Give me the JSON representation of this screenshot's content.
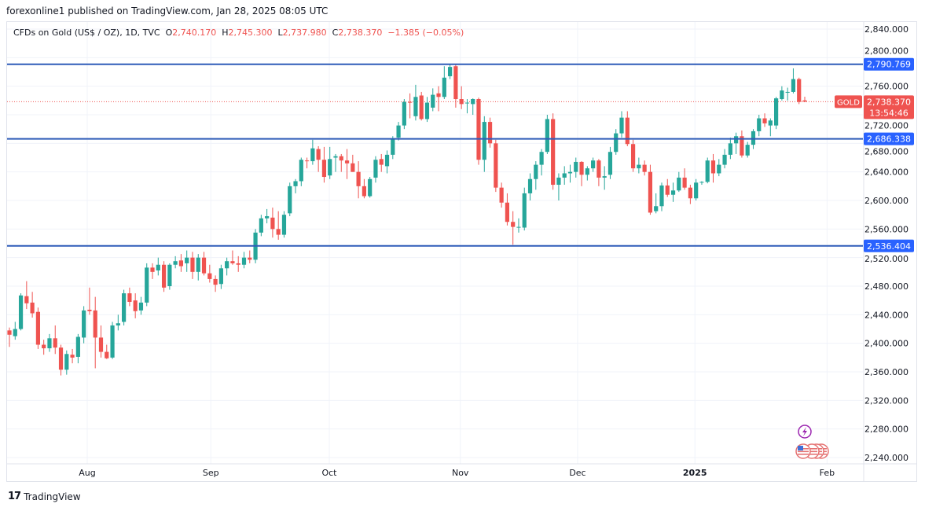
{
  "header": {
    "published": "forexonline1 published on TradingView.com, Jan 28, 2025 08:05 UTC"
  },
  "legend": {
    "symbol": "CFDs on Gold (US$ / OZ), 1D, TVC",
    "o_label": "O",
    "o": "2,740.170",
    "h_label": "H",
    "h": "2,745.300",
    "l_label": "L",
    "l": "2,737.980",
    "c_label": "C",
    "c": "2,738.370",
    "change": "−1.385 (−0.05%)"
  },
  "footer": {
    "brand": "TradingView"
  },
  "colors": {
    "up": "#26a69a",
    "down": "#ef5350",
    "level_line": "#2f5cb8",
    "level_label": "#2962ff",
    "grid": "#f0f3fa"
  },
  "chart_data": {
    "type": "candlestick",
    "title": "",
    "ylim": [
      2220,
      2860
    ],
    "y_ticks": [
      "2,840.000",
      "2,800.000",
      "2,760.000",
      "2,720.000",
      "2,680.000",
      "2,640.000",
      "2,600.000",
      "2,560.000",
      "2,520.000",
      "2,480.000",
      "2,440.000",
      "2,400.000",
      "2,360.000",
      "2,320.000",
      "2,280.000",
      "2,240.000"
    ],
    "x_ticks": [
      {
        "label": "Aug",
        "bar": 13.6
      },
      {
        "label": "Sep",
        "bar": 35.2
      },
      {
        "label": "Oct",
        "bar": 55.9
      },
      {
        "label": "Nov",
        "bar": 78.8
      },
      {
        "label": "Dec",
        "bar": 99.3
      },
      {
        "label": "2025",
        "bar": 119.8
      },
      {
        "label": "Feb",
        "bar": 142.9
      }
    ],
    "levels": [
      {
        "price": 2790.769,
        "label": "2,790.769"
      },
      {
        "price": 2686.338,
        "label": "2,686.338"
      },
      {
        "price": 2536.404,
        "label": "2,536.404"
      }
    ],
    "current": {
      "symbol": "GOLD",
      "price": 2738.37,
      "label": "2,738.370",
      "countdown": "13:54:46"
    },
    "ohlc_columns": [
      "open",
      "high",
      "low",
      "close"
    ],
    "candles": [
      [
        2418,
        2422,
        2395,
        2412
      ],
      [
        2410,
        2430,
        2405,
        2420
      ],
      [
        2420,
        2470,
        2418,
        2467
      ],
      [
        2466,
        2487,
        2448,
        2456
      ],
      [
        2457,
        2472,
        2436,
        2442
      ],
      [
        2444,
        2450,
        2392,
        2398
      ],
      [
        2398,
        2405,
        2384,
        2393
      ],
      [
        2393,
        2413,
        2388,
        2407
      ],
      [
        2407,
        2425,
        2385,
        2394
      ],
      [
        2394,
        2398,
        2355,
        2363
      ],
      [
        2363,
        2390,
        2356,
        2385
      ],
      [
        2384,
        2392,
        2372,
        2380
      ],
      [
        2381,
        2413,
        2372,
        2409
      ],
      [
        2408,
        2452,
        2400,
        2446
      ],
      [
        2447,
        2478,
        2440,
        2445
      ],
      [
        2446,
        2465,
        2365,
        2408
      ],
      [
        2408,
        2425,
        2380,
        2388
      ],
      [
        2388,
        2398,
        2378,
        2379
      ],
      [
        2380,
        2430,
        2378,
        2425
      ],
      [
        2425,
        2440,
        2418,
        2428
      ],
      [
        2430,
        2475,
        2425,
        2470
      ],
      [
        2470,
        2478,
        2452,
        2458
      ],
      [
        2460,
        2470,
        2435,
        2445
      ],
      [
        2446,
        2465,
        2440,
        2457
      ],
      [
        2457,
        2512,
        2452,
        2506
      ],
      [
        2506,
        2512,
        2490,
        2500
      ],
      [
        2502,
        2520,
        2495,
        2510
      ],
      [
        2510,
        2515,
        2472,
        2478
      ],
      [
        2480,
        2512,
        2475,
        2510
      ],
      [
        2510,
        2522,
        2505,
        2515
      ],
      [
        2516,
        2525,
        2500,
        2508
      ],
      [
        2512,
        2530,
        2500,
        2520
      ],
      [
        2520,
        2528,
        2490,
        2500
      ],
      [
        2500,
        2525,
        2488,
        2520
      ],
      [
        2520,
        2528,
        2495,
        2498
      ],
      [
        2498,
        2510,
        2485,
        2490
      ],
      [
        2490,
        2495,
        2472,
        2482
      ],
      [
        2483,
        2510,
        2476,
        2505
      ],
      [
        2505,
        2520,
        2495,
        2515
      ],
      [
        2515,
        2530,
        2510,
        2512
      ],
      [
        2512,
        2522,
        2500,
        2510
      ],
      [
        2510,
        2528,
        2505,
        2520
      ],
      [
        2520,
        2530,
        2512,
        2517
      ],
      [
        2517,
        2560,
        2512,
        2555
      ],
      [
        2555,
        2580,
        2550,
        2575
      ],
      [
        2575,
        2588,
        2568,
        2578
      ],
      [
        2576,
        2590,
        2548,
        2560
      ],
      [
        2560,
        2585,
        2545,
        2552
      ],
      [
        2552,
        2585,
        2548,
        2580
      ],
      [
        2582,
        2625,
        2578,
        2620
      ],
      [
        2620,
        2630,
        2610,
        2627
      ],
      [
        2627,
        2660,
        2620,
        2657
      ],
      [
        2656,
        2660,
        2645,
        2655
      ],
      [
        2655,
        2685,
        2650,
        2673
      ],
      [
        2672,
        2676,
        2640,
        2657
      ],
      [
        2657,
        2675,
        2625,
        2633
      ],
      [
        2635,
        2675,
        2630,
        2658
      ],
      [
        2660,
        2665,
        2640,
        2662
      ],
      [
        2662,
        2665,
        2640,
        2656
      ],
      [
        2656,
        2672,
        2630,
        2652
      ],
      [
        2652,
        2664,
        2640,
        2640
      ],
      [
        2640,
        2655,
        2603,
        2620
      ],
      [
        2620,
        2630,
        2603,
        2606
      ],
      [
        2606,
        2633,
        2604,
        2630
      ],
      [
        2632,
        2662,
        2625,
        2657
      ],
      [
        2658,
        2665,
        2640,
        2650
      ],
      [
        2648,
        2670,
        2638,
        2664
      ],
      [
        2664,
        2690,
        2658,
        2686
      ],
      [
        2688,
        2710,
        2684,
        2705
      ],
      [
        2705,
        2742,
        2700,
        2738
      ],
      [
        2738,
        2750,
        2715,
        2737
      ],
      [
        2718,
        2762,
        2712,
        2745
      ],
      [
        2747,
        2752,
        2712,
        2714
      ],
      [
        2714,
        2745,
        2710,
        2737
      ],
      [
        2730,
        2757,
        2725,
        2748
      ],
      [
        2750,
        2760,
        2725,
        2745
      ],
      [
        2745,
        2788,
        2742,
        2772
      ],
      [
        2774,
        2790,
        2770,
        2787
      ],
      [
        2788,
        2790,
        2730,
        2742
      ],
      [
        2742,
        2760,
        2728,
        2735
      ],
      [
        2736,
        2742,
        2722,
        2737
      ],
      [
        2735,
        2743,
        2720,
        2742
      ],
      [
        2742,
        2744,
        2650,
        2657
      ],
      [
        2657,
        2718,
        2640,
        2710
      ],
      [
        2710,
        2716,
        2674,
        2680
      ],
      [
        2680,
        2685,
        2612,
        2618
      ],
      [
        2618,
        2625,
        2590,
        2597
      ],
      [
        2597,
        2610,
        2565,
        2570
      ],
      [
        2570,
        2585,
        2538,
        2563
      ],
      [
        2563,
        2575,
        2555,
        2563
      ],
      [
        2562,
        2618,
        2558,
        2610
      ],
      [
        2610,
        2638,
        2600,
        2630
      ],
      [
        2630,
        2655,
        2615,
        2650
      ],
      [
        2650,
        2672,
        2635,
        2668
      ],
      [
        2668,
        2720,
        2665,
        2714
      ],
      [
        2714,
        2722,
        2615,
        2622
      ],
      [
        2622,
        2638,
        2600,
        2632
      ],
      [
        2632,
        2648,
        2622,
        2638
      ],
      [
        2638,
        2650,
        2625,
        2640
      ],
      [
        2640,
        2660,
        2632,
        2654
      ],
      [
        2654,
        2655,
        2620,
        2636
      ],
      [
        2636,
        2648,
        2628,
        2645
      ],
      [
        2645,
        2660,
        2640,
        2656
      ],
      [
        2656,
        2658,
        2620,
        2632
      ],
      [
        2632,
        2648,
        2615,
        2634
      ],
      [
        2636,
        2675,
        2630,
        2668
      ],
      [
        2668,
        2700,
        2664,
        2694
      ],
      [
        2694,
        2725,
        2688,
        2716
      ],
      [
        2716,
        2725,
        2676,
        2679
      ],
      [
        2679,
        2685,
        2640,
        2645
      ],
      [
        2645,
        2660,
        2638,
        2650
      ],
      [
        2650,
        2656,
        2635,
        2640
      ],
      [
        2640,
        2650,
        2580,
        2583
      ],
      [
        2585,
        2610,
        2582,
        2592
      ],
      [
        2592,
        2625,
        2585,
        2621
      ],
      [
        2621,
        2630,
        2605,
        2608
      ],
      [
        2608,
        2625,
        2598,
        2614
      ],
      [
        2614,
        2640,
        2612,
        2632
      ],
      [
        2632,
        2645,
        2615,
        2618
      ],
      [
        2618,
        2622,
        2595,
        2603
      ],
      [
        2603,
        2630,
        2600,
        2625
      ],
      [
        2625,
        2627,
        2622,
        2626
      ],
      [
        2626,
        2660,
        2624,
        2656
      ],
      [
        2656,
        2665,
        2625,
        2638
      ],
      [
        2638,
        2658,
        2634,
        2650
      ],
      [
        2650,
        2672,
        2645,
        2664
      ],
      [
        2664,
        2688,
        2658,
        2680
      ],
      [
        2680,
        2695,
        2665,
        2690
      ],
      [
        2690,
        2698,
        2660,
        2663
      ],
      [
        2663,
        2682,
        2660,
        2678
      ],
      [
        2678,
        2700,
        2672,
        2697
      ],
      [
        2697,
        2720,
        2690,
        2715
      ],
      [
        2715,
        2722,
        2703,
        2708
      ],
      [
        2705,
        2715,
        2690,
        2712
      ],
      [
        2705,
        2745,
        2700,
        2743
      ],
      [
        2742,
        2760,
        2740,
        2754
      ],
      [
        2752,
        2758,
        2740,
        2752
      ],
      [
        2752,
        2785,
        2750,
        2770
      ],
      [
        2770,
        2772,
        2735,
        2738
      ],
      [
        2740.17,
        2745.3,
        2737.98,
        2738.37
      ]
    ],
    "event_icons": [
      "lightning-event-icon",
      "us-flag-event-icon"
    ]
  }
}
